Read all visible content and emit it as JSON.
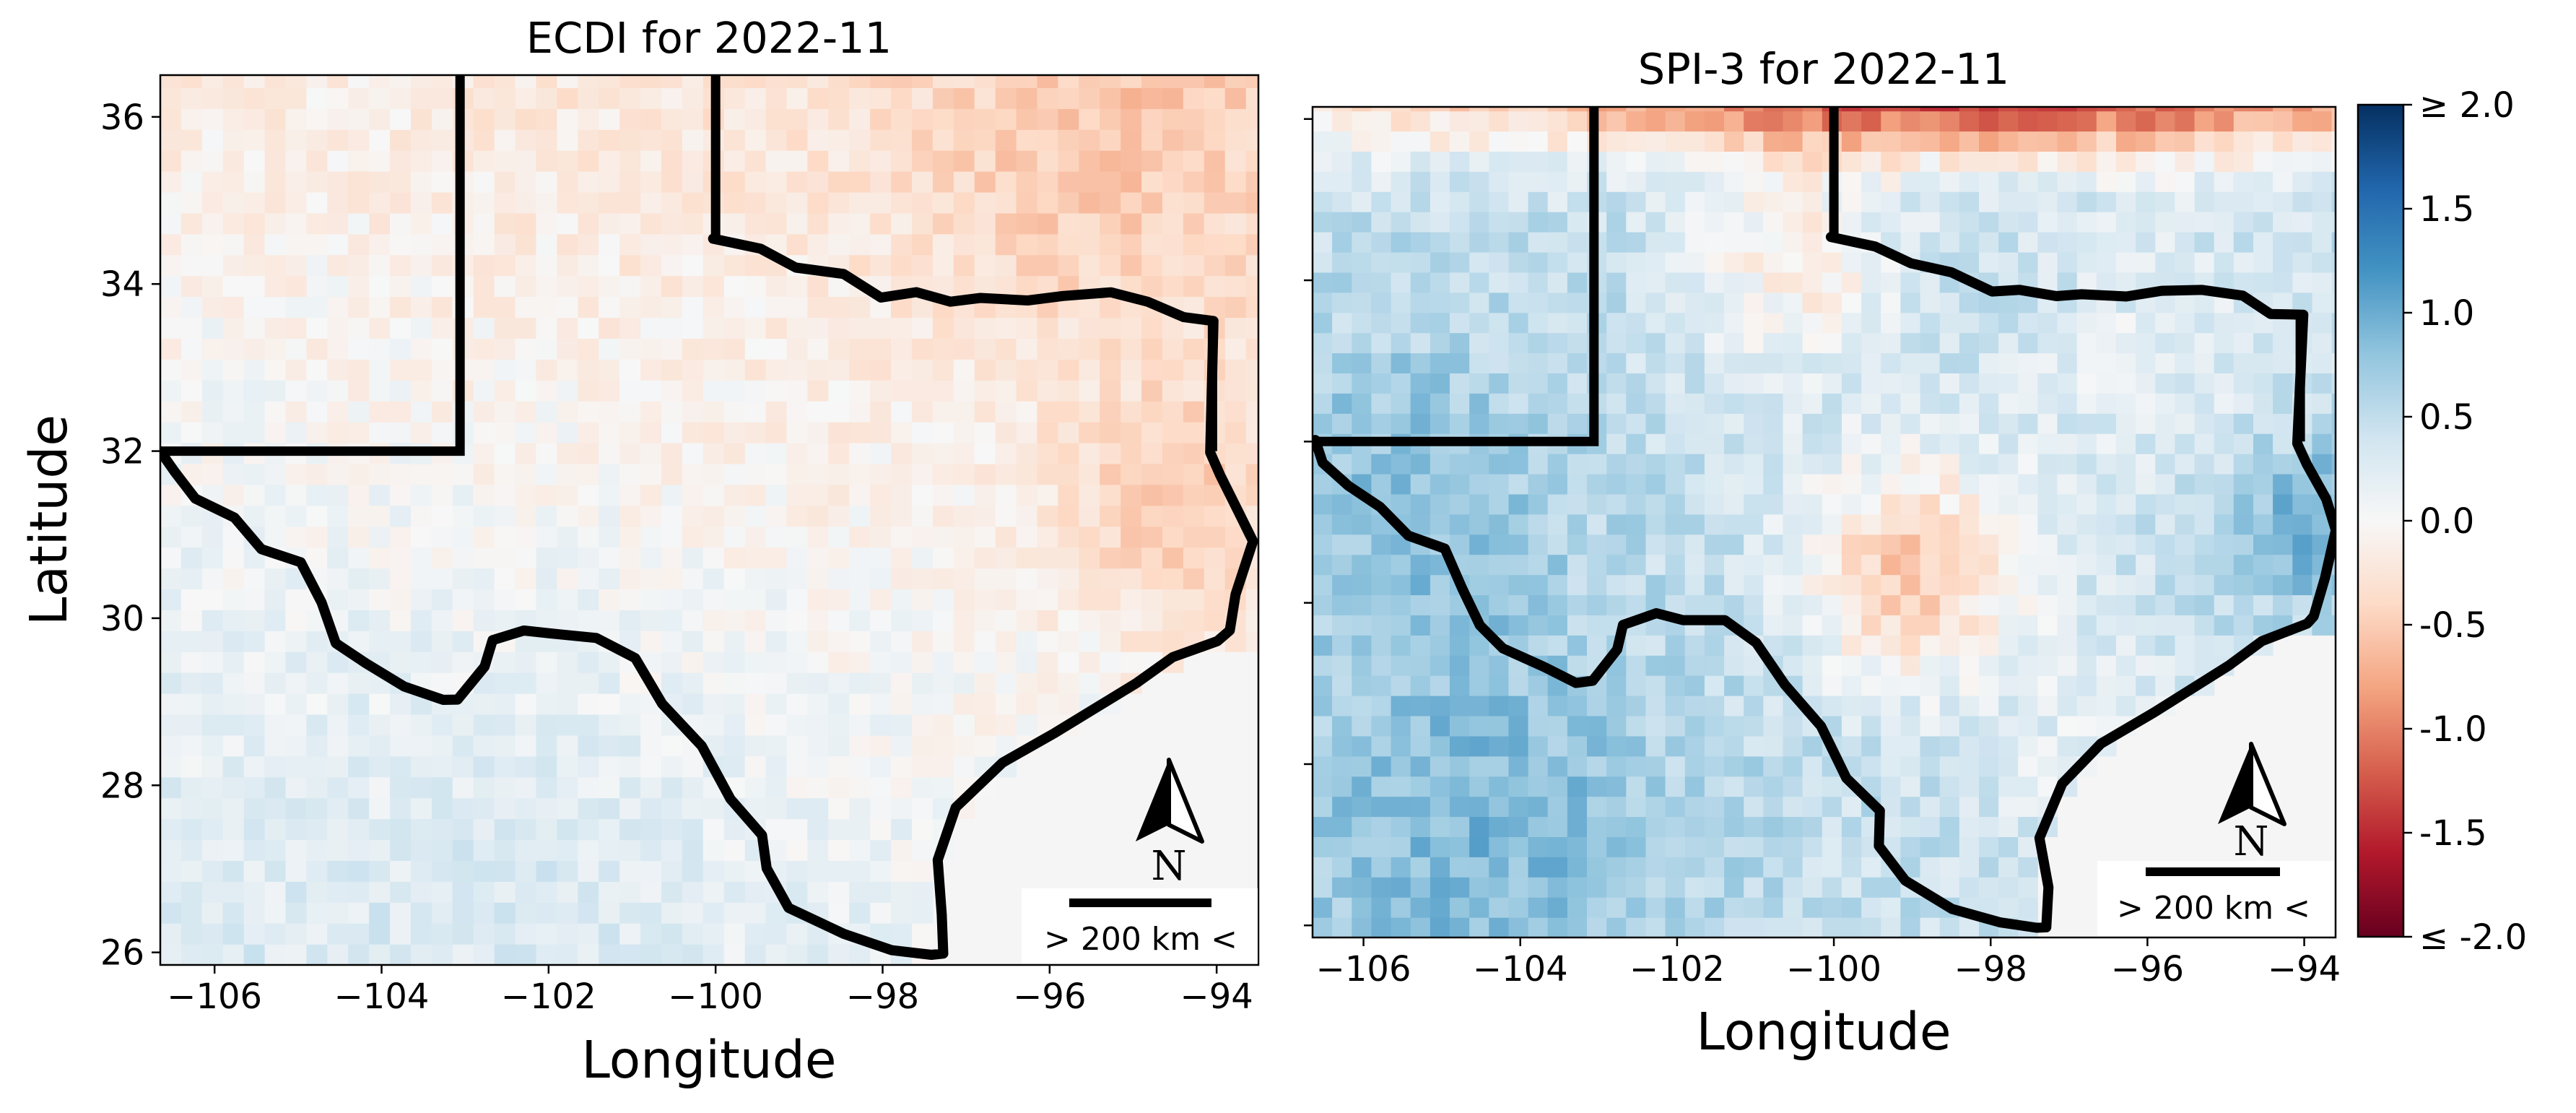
{
  "chart_data": [
    {
      "type": "heatmap",
      "title": "ECDI for 2022-11",
      "xlabel": "Longitude",
      "ylabel": "Latitude",
      "xlim": [
        -106.65,
        -93.5
      ],
      "ylim": [
        25.85,
        36.5
      ],
      "xticks": [
        -106,
        -104,
        -102,
        -100,
        -98,
        -96,
        -94
      ],
      "xtick_labels": [
        "−106",
        "−104",
        "−102",
        "−100",
        "−98",
        "−96",
        "−94"
      ],
      "yticks": [
        26,
        28,
        30,
        32,
        34,
        36
      ],
      "ytick_labels": [
        "26",
        "28",
        "30",
        "32",
        "34",
        "36"
      ],
      "value_range": [
        -2.0,
        2.0
      ],
      "grid": false,
      "description": "Gridded index over Texas: mostly weak negative (light red, about -0.2 to -0.6) in the north and east, near zero to weak positive (light blue, about 0 to 0.4) in the southwest and south.",
      "scale_bar": "> 200 km <",
      "north_arrow": "N"
    },
    {
      "type": "heatmap",
      "title": "SPI-3 for 2022-11",
      "xlabel": "Longitude",
      "ylabel": "",
      "xlim": [
        -106.65,
        -93.6
      ],
      "ylim": [
        25.85,
        36.15
      ],
      "xticks": [
        -106,
        -104,
        -102,
        -100,
        -98,
        -96,
        -94
      ],
      "xtick_labels": [
        "−106",
        "−104",
        "−102",
        "−100",
        "−98",
        "−96",
        "−94"
      ],
      "value_range": [
        -2.0,
        2.0
      ],
      "grid": false,
      "description": "Gridded index over Texas: strong negative (red, about -1.0 to -1.6) along the northern edge, moderate negative patch near -98 lon / 30.5 lat, widespread positive (blue, about 0.5 to 1.3) in the west, south and far east.",
      "scale_bar": "> 200 km <",
      "north_arrow": "N"
    }
  ],
  "colorbar": {
    "colormap": "RdBu",
    "min": -2.0,
    "max": 2.0,
    "ticks": [
      2.0,
      1.5,
      1.0,
      0.5,
      0.0,
      -0.5,
      -1.0,
      -1.5,
      -2.0
    ],
    "tick_labels": [
      "≥ 2.0",
      "1.5",
      "1.0",
      "0.5",
      "0.0",
      "-0.5",
      "-1.0",
      "-1.5",
      "≤ -2.0"
    ]
  },
  "colors": {
    "strong_negative": "#67001f",
    "neutral": "#f7f7f7",
    "strong_positive": "#053061",
    "ocean": "#f4f4f4",
    "outline": "#000000"
  }
}
